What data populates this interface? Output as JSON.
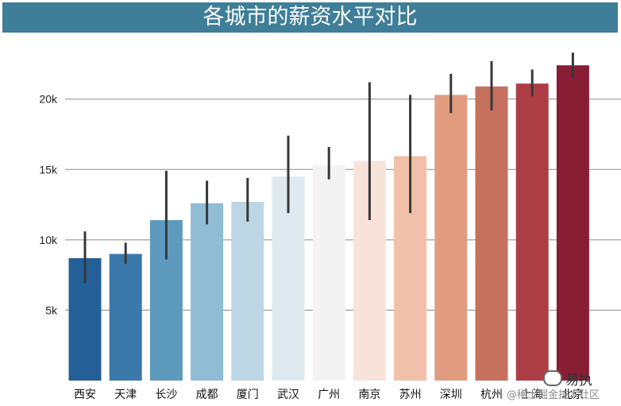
{
  "title": "各城市的薪资水平对比",
  "chart_data": {
    "type": "bar",
    "title": "各城市的薪资水平对比",
    "xlabel": "",
    "ylabel": "",
    "categories": [
      "西安",
      "天津",
      "长沙",
      "成都",
      "厦门",
      "武汉",
      "广州",
      "南京",
      "苏州",
      "深圳",
      "杭州",
      "上海",
      "北京"
    ],
    "values": [
      8700,
      9000,
      11400,
      12600,
      12700,
      14500,
      15300,
      15600,
      15950,
      20300,
      20900,
      21100,
      22400
    ],
    "error_low": [
      6900,
      8300,
      8600,
      11100,
      11300,
      11900,
      14300,
      11400,
      11900,
      19000,
      19200,
      20200,
      21500
    ],
    "error_high": [
      10600,
      9800,
      14900,
      14200,
      14400,
      17400,
      16600,
      21200,
      20300,
      21800,
      22700,
      22100,
      23300
    ],
    "colors": [
      "#255f97",
      "#3c79ab",
      "#5e99be",
      "#90bcd4",
      "#bcd6e4",
      "#dfe9f0",
      "#f4f3f3",
      "#f7e3d9",
      "#f0c0a8",
      "#e19c80",
      "#c6705e",
      "#ad3e45",
      "#891d33"
    ],
    "error_color": "#383838",
    "ylim": [
      0,
      24500
    ],
    "yticks": [
      5000,
      10000,
      15000,
      20000
    ],
    "ytick_labels": [
      "5k",
      "10k",
      "15k",
      "20k"
    ],
    "grid": true
  },
  "watermark": {
    "brand": "易执",
    "site": "@稀土掘金技术社区",
    "icon": "wechat-icon"
  }
}
